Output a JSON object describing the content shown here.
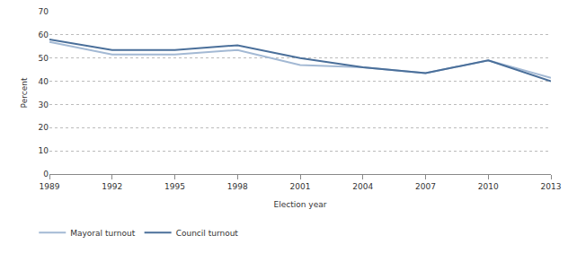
{
  "chart_data": {
    "type": "line",
    "x_label": "Election year",
    "y_label": "Percent",
    "categories": [
      "1989",
      "1992",
      "1995",
      "1998",
      "2001",
      "2004",
      "2007",
      "2010",
      "2013"
    ],
    "series": [
      {
        "name": "Mayoral turnout",
        "color": "#a3b9d4",
        "values": [
          57,
          51.5,
          51.5,
          53.5,
          47,
          46,
          43.5,
          49,
          41.5
        ]
      },
      {
        "name": "Council turnout",
        "color": "#4a6f9a",
        "values": [
          58,
          53.5,
          53.5,
          55.5,
          50,
          46,
          43.5,
          49,
          40
        ]
      }
    ],
    "ylim": [
      0,
      70
    ],
    "yticks": [
      0,
      10,
      20,
      30,
      40,
      50,
      60,
      70
    ],
    "grid": true,
    "legend": "bottom left"
  }
}
